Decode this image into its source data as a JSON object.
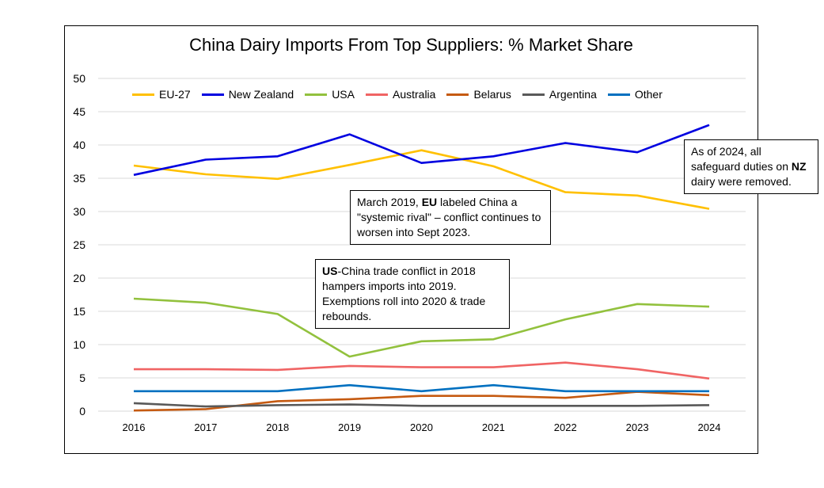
{
  "chart_data": {
    "type": "line",
    "title": "China Dairy Imports From Top Suppliers: % Market Share",
    "x": [
      "2016",
      "2017",
      "2018",
      "2019",
      "2020",
      "2021",
      "2022",
      "2023",
      "2024"
    ],
    "ylim": [
      0,
      50
    ],
    "yticks": [
      "0",
      "5",
      "10",
      "15",
      "20",
      "25",
      "30",
      "35",
      "40",
      "45",
      "50"
    ],
    "grid": true,
    "legend_position": "top",
    "series": [
      {
        "name": "EU-27",
        "color": "#FFC000",
        "values": [
          36.9,
          35.6,
          34.9,
          37.0,
          39.2,
          36.8,
          32.9,
          32.4,
          30.4
        ]
      },
      {
        "name": "New Zealand",
        "color": "#0000E0",
        "values": [
          35.5,
          37.8,
          38.3,
          41.6,
          37.3,
          38.3,
          40.3,
          38.9,
          43.0
        ]
      },
      {
        "name": "USA",
        "color": "#92C13D",
        "values": [
          16.9,
          16.3,
          14.6,
          8.2,
          10.5,
          10.8,
          13.8,
          16.1,
          15.7
        ]
      },
      {
        "name": "Australia",
        "color": "#F06464",
        "values": [
          6.3,
          6.3,
          6.2,
          6.8,
          6.6,
          6.6,
          7.3,
          6.3,
          4.9
        ]
      },
      {
        "name": "Belarus",
        "color": "#C55A11",
        "values": [
          0.1,
          0.3,
          1.5,
          1.8,
          2.3,
          2.3,
          2.0,
          2.9,
          2.4
        ]
      },
      {
        "name": "Argentina",
        "color": "#595959",
        "values": [
          1.2,
          0.7,
          0.9,
          1.0,
          0.8,
          0.8,
          0.8,
          0.8,
          0.9
        ]
      },
      {
        "name": "Other",
        "color": "#0070C0",
        "values": [
          3.0,
          3.0,
          3.0,
          3.9,
          3.0,
          3.9,
          3.0,
          3.0,
          3.0
        ]
      }
    ],
    "annotations": [
      {
        "parts": [
          {
            "text": "March 2019, "
          },
          {
            "text": "EU",
            "bold": true
          },
          {
            "text": " labeled China a \"systemic rival\" – conflict continues to worsen into Sept 2023."
          }
        ]
      },
      {
        "parts": [
          {
            "text": "US",
            "bold": true
          },
          {
            "text": "-China trade conflict in 2018 hampers imports into 2019. Exemptions roll into 2020 & trade rebounds."
          }
        ]
      },
      {
        "parts": [
          {
            "text": "As of 2024, all safeguard duties on "
          },
          {
            "text": "NZ",
            "bold": true
          },
          {
            "text": " dairy were removed."
          }
        ]
      }
    ]
  }
}
